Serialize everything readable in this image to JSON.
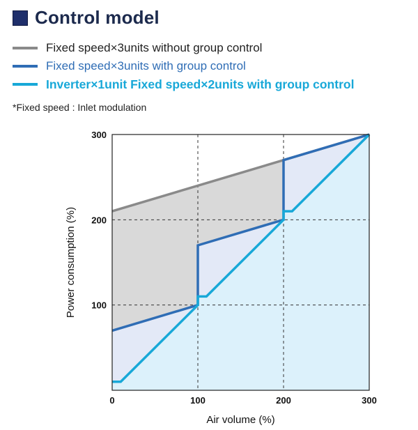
{
  "header": {
    "title": "Control model"
  },
  "legend": [
    {
      "label": "Fixed speed×3units without group control",
      "color": "#8a8a8a",
      "bold": false
    },
    {
      "label": "Fixed speed×3units with group control",
      "color": "#2f6db5",
      "bold": false
    },
    {
      "label": "Inverter×1unit Fixed speed×2units with group control",
      "color": "#18a8d8",
      "bold": true
    }
  ],
  "note": "*Fixed speed : Inlet modulation",
  "chart_data": {
    "type": "line",
    "xlabel": "Air volume  (%)",
    "ylabel": "Power consumption  (%)",
    "xlim": [
      0,
      300
    ],
    "ylim": [
      0,
      300
    ],
    "x_ticks": [
      "0",
      "100",
      "200",
      "300"
    ],
    "y_ticks": [
      "100",
      "200",
      "300"
    ],
    "grid": "dashed",
    "colors": {
      "gray_fill": "#d9d9d9",
      "mid_fill": "#e3e9f7",
      "light_fill": "#dcf1fb",
      "border": "#222222"
    },
    "series": [
      {
        "name": "Fixed speed×3units without group control",
        "color": "#8a8a8a",
        "points": [
          [
            0,
            210
          ],
          [
            300,
            300
          ]
        ]
      },
      {
        "name": "Fixed speed×3units with group control",
        "color": "#2f6db5",
        "points": [
          [
            0,
            70
          ],
          [
            100,
            100
          ],
          [
            100,
            170
          ],
          [
            200,
            200
          ],
          [
            200,
            270
          ],
          [
            300,
            300
          ]
        ]
      },
      {
        "name": "Inverter×1unit Fixed speed×2units with group control",
        "color": "#18a8d8",
        "points": [
          [
            0,
            10
          ],
          [
            10,
            10
          ],
          [
            100,
            100
          ],
          [
            100,
            110
          ],
          [
            110,
            110
          ],
          [
            200,
            200
          ],
          [
            200,
            210
          ],
          [
            210,
            210
          ],
          [
            300,
            300
          ]
        ]
      }
    ]
  }
}
